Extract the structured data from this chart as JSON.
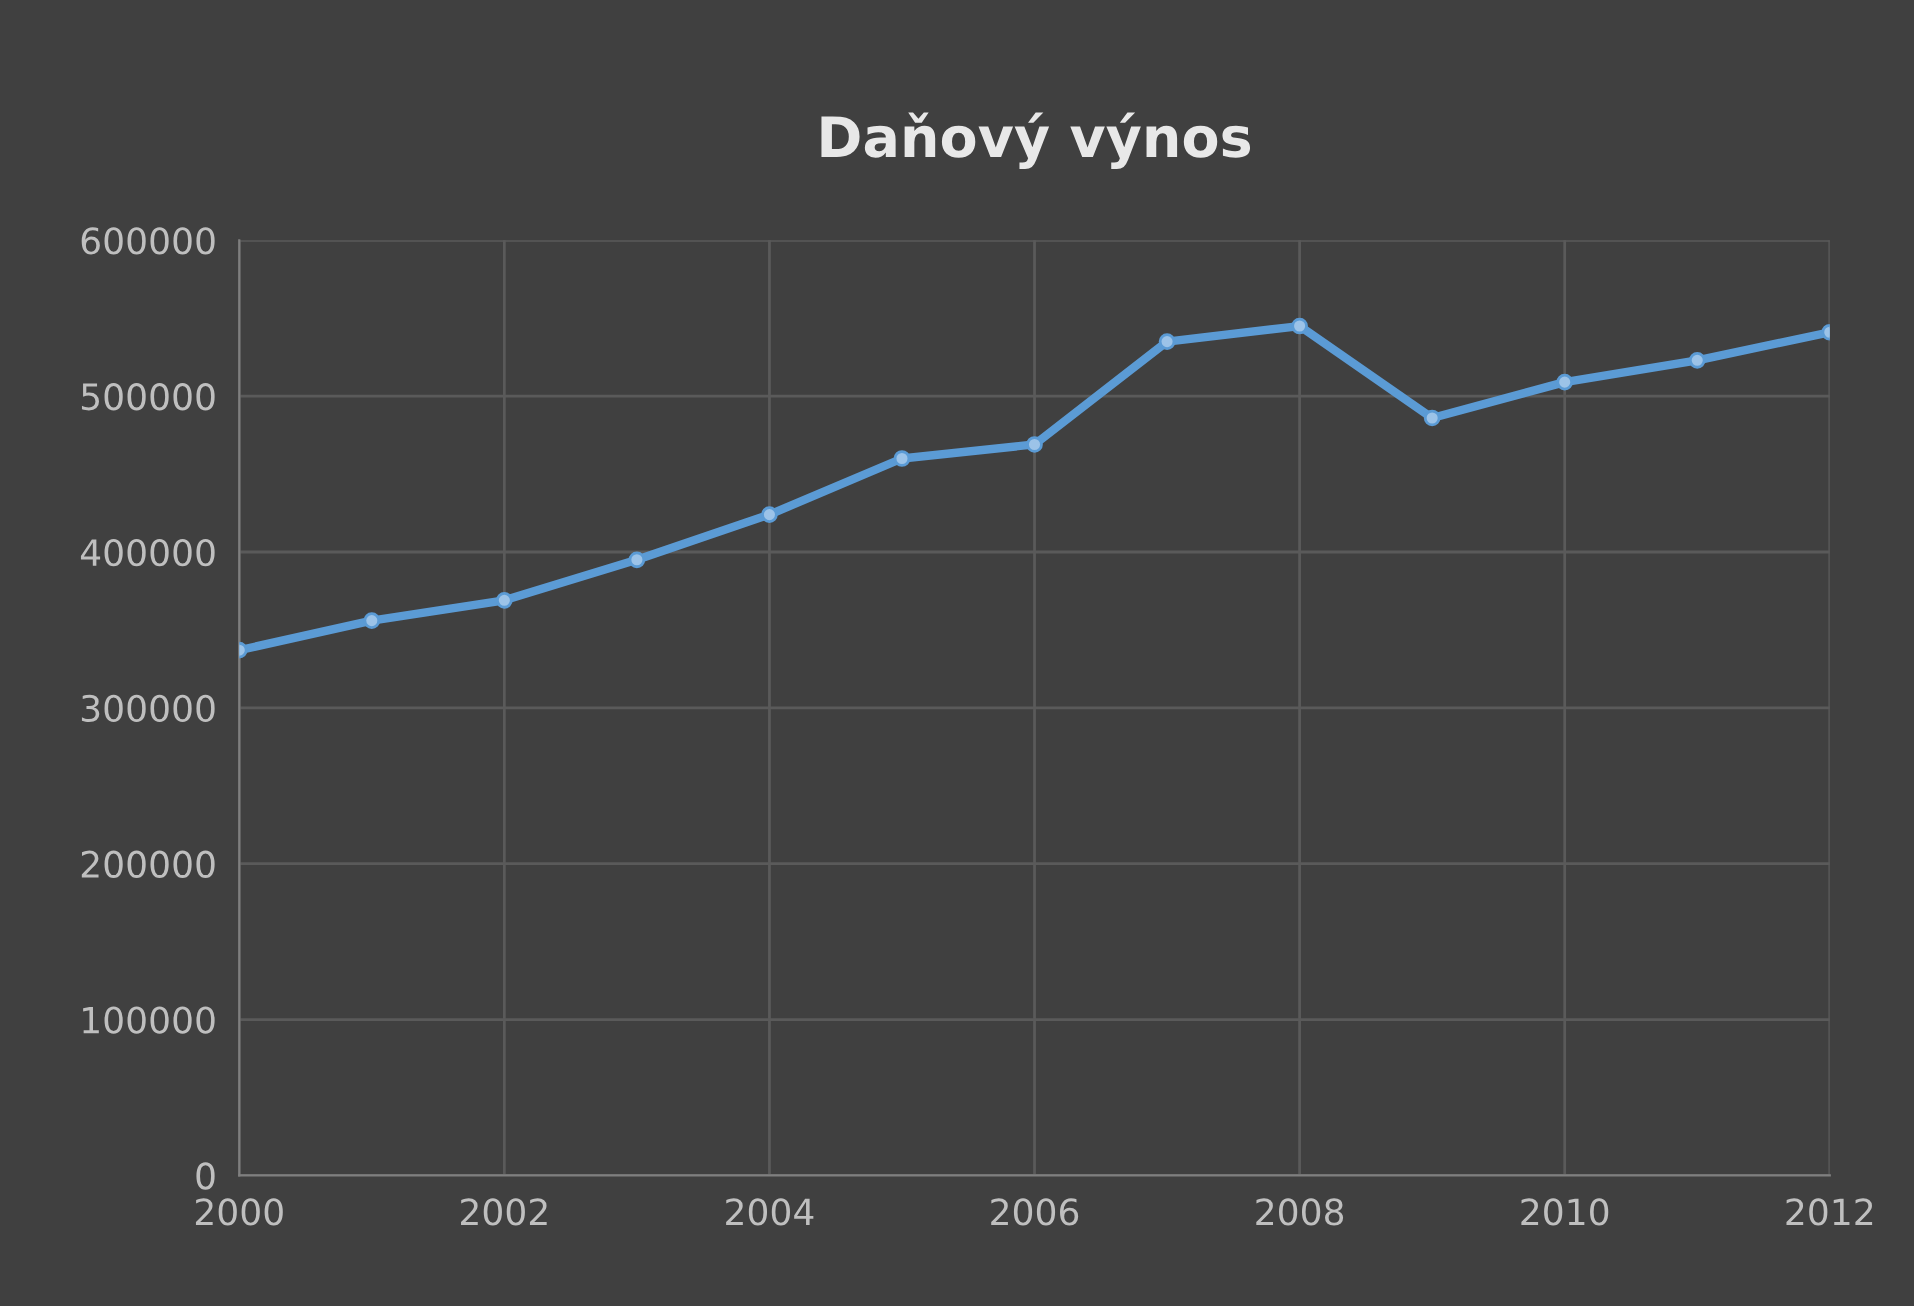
{
  "chart_data": {
    "type": "line",
    "title": "Daňový výnos",
    "x": [
      2000,
      2001,
      2002,
      2003,
      2004,
      2005,
      2006,
      2007,
      2008,
      2009,
      2010,
      2011,
      2012
    ],
    "series": [
      {
        "color": "#5b9bd5",
        "values": [
          337000,
          356000,
          369000,
          395000,
          424000,
          460000,
          469000,
          535000,
          545000,
          486000,
          509000,
          523000,
          541000
        ]
      }
    ],
    "xlim": [
      2000,
      2012
    ],
    "xticks": [
      2000,
      2002,
      2004,
      2006,
      2008,
      2010,
      2012
    ],
    "ylim": [
      0,
      600000
    ],
    "yticks": [
      0,
      100000,
      200000,
      300000,
      400000,
      500000,
      600000
    ],
    "grid": true,
    "marker": "circle",
    "line_style": "solid"
  }
}
